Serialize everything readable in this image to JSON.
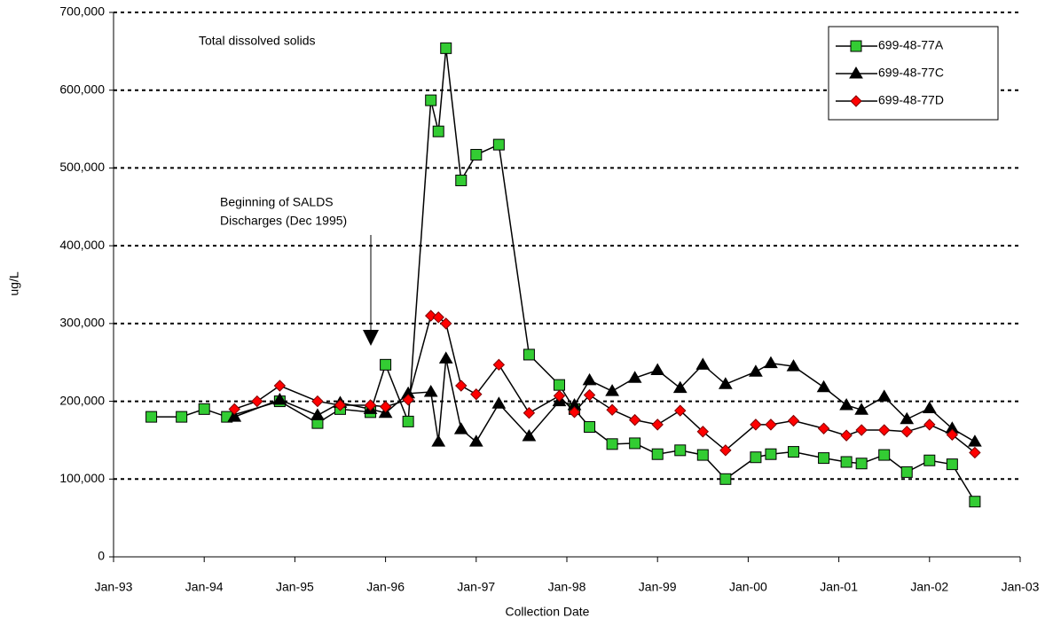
{
  "chart_data": {
    "type": "line",
    "annotations": [
      "Total dissolved solids",
      "Beginning of SALDS",
      "Discharges (Dec 1995)"
    ],
    "x_label": "Collection Date",
    "y_label": "ug/L",
    "xlim": [
      "1993-01",
      "2003-01"
    ],
    "xticks": [
      {
        "value": "1993-01",
        "label": "Jan-93"
      },
      {
        "value": "1994-01",
        "label": "Jan-94"
      },
      {
        "value": "1995-01",
        "label": "Jan-95"
      },
      {
        "value": "1996-01",
        "label": "Jan-96"
      },
      {
        "value": "1997-01",
        "label": "Jan-97"
      },
      {
        "value": "1998-01",
        "label": "Jan-98"
      },
      {
        "value": "1999-01",
        "label": "Jan-99"
      },
      {
        "value": "2000-01",
        "label": "Jan-00"
      },
      {
        "value": "2001-01",
        "label": "Jan-01"
      },
      {
        "value": "2002-01",
        "label": "Jan-02"
      },
      {
        "value": "2003-01",
        "label": "Jan-03"
      }
    ],
    "ylim": [
      0,
      700000
    ],
    "yticks": [
      0,
      {
        "value": 100000,
        "label": "100,000"
      },
      {
        "value": 200000,
        "label": "200,000"
      },
      {
        "value": 300000,
        "label": "300,000"
      },
      {
        "value": 400000,
        "label": "400,000"
      },
      {
        "value": 500000,
        "label": "500,000"
      },
      {
        "value": 600000,
        "label": "600,000"
      },
      {
        "value": 700000,
        "label": "700,000"
      }
    ],
    "grid": true,
    "legend": "upper right",
    "series": [
      {
        "name": "699-48-77A",
        "color": "#33cc33",
        "marker": "square",
        "x": [
          "1993-06",
          "1993-10",
          "1994-01",
          "1994-04",
          "1994-11",
          "1995-04",
          "1995-07",
          "1995-11",
          "1996-01",
          "1996-04",
          "1996-07",
          "1996-08",
          "1996-09",
          "1996-11",
          "1997-01",
          "1997-04",
          "1997-08",
          "1997-12",
          "1998-02",
          "1998-04",
          "1998-07",
          "1998-10",
          "1999-01",
          "1999-04",
          "1999-07",
          "1999-10",
          "2000-02",
          "2000-04",
          "2000-07",
          "2000-11",
          "2001-02",
          "2001-04",
          "2001-07",
          "2001-10",
          "2002-01",
          "2002-04",
          "2002-07"
        ],
        "values": [
          180000,
          180000,
          190000,
          180000,
          200000,
          172000,
          190000,
          186000,
          247000,
          174000,
          587000,
          547000,
          654000,
          484000,
          517000,
          530000,
          260000,
          221000,
          190000,
          167000,
          145000,
          146000,
          132000,
          137000,
          131000,
          100000,
          128000,
          132000,
          135000,
          127000,
          122000,
          120000,
          131000,
          109000,
          124000,
          119000,
          71000
        ]
      },
      {
        "name": "699-48-77C",
        "color": "#000000",
        "marker": "triangle",
        "x": [
          "1994-05",
          "1994-11",
          "1995-04",
          "1995-07",
          "1995-11",
          "1996-01",
          "1996-04",
          "1996-07",
          "1996-08",
          "1996-09",
          "1996-11",
          "1997-01",
          "1997-04",
          "1997-08",
          "1997-12",
          "1998-02",
          "1998-04",
          "1998-07",
          "1998-10",
          "1999-01",
          "1999-04",
          "1999-07",
          "1999-10",
          "2000-02",
          "2000-04",
          "2000-07",
          "2000-11",
          "2001-02",
          "2001-04",
          "2001-07",
          "2001-10",
          "2002-01",
          "2002-04",
          "2002-07"
        ],
        "values": [
          180000,
          202000,
          182000,
          198000,
          190000,
          185000,
          210000,
          212000,
          148000,
          255000,
          164000,
          148000,
          197000,
          155000,
          200000,
          195000,
          227000,
          213000,
          230000,
          240000,
          217000,
          247000,
          222000,
          238000,
          249000,
          245000,
          218000,
          195000,
          189000,
          206000,
          177000,
          191000,
          165000,
          148000
        ]
      },
      {
        "name": "699-48-77D",
        "color": "#ff0000",
        "marker": "diamond",
        "x": [
          "1994-05",
          "1994-08",
          "1994-11",
          "1995-04",
          "1995-07",
          "1995-11",
          "1996-01",
          "1996-04",
          "1996-07",
          "1996-08",
          "1996-09",
          "1996-11",
          "1997-01",
          "1997-04",
          "1997-08",
          "1997-12",
          "1998-02",
          "1998-04",
          "1998-07",
          "1998-10",
          "1999-01",
          "1999-04",
          "1999-07",
          "1999-10",
          "2000-02",
          "2000-04",
          "2000-07",
          "2000-11",
          "2001-02",
          "2001-04",
          "2001-07",
          "2001-10",
          "2002-01",
          "2002-04",
          "2002-07"
        ],
        "values": [
          190000,
          200000,
          220000,
          200000,
          195000,
          195000,
          193000,
          202000,
          310000,
          308000,
          300000,
          220000,
          209000,
          247000,
          185000,
          207000,
          186000,
          208000,
          189000,
          176000,
          170000,
          188000,
          161000,
          137000,
          170000,
          170000,
          175000,
          165000,
          156000,
          163000,
          163000,
          161000,
          170000,
          157000,
          134000
        ]
      }
    ]
  }
}
